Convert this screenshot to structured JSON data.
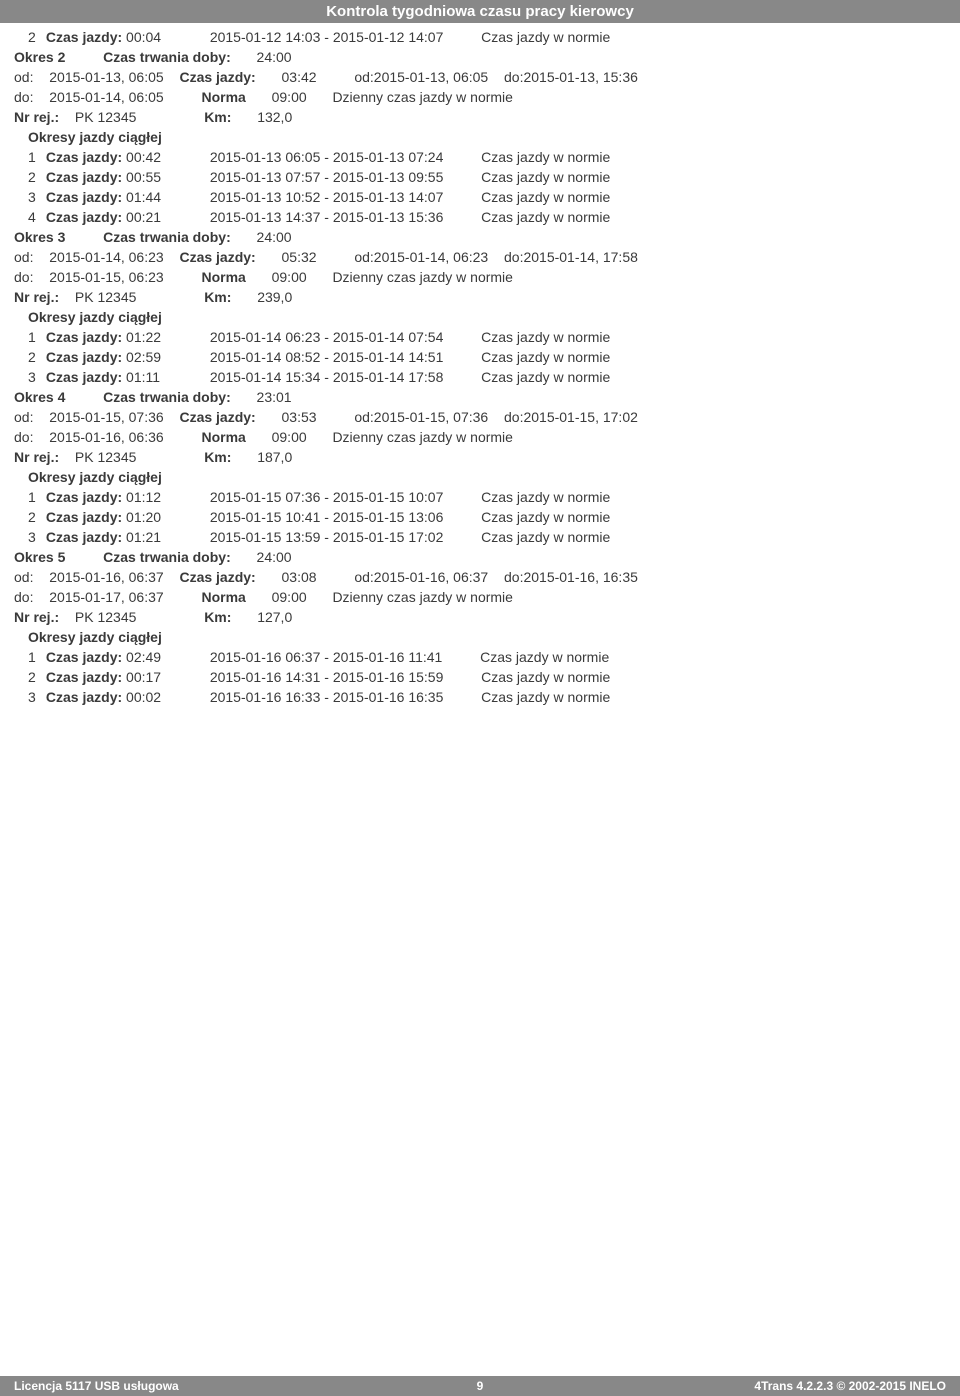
{
  "header": "Kontrola tygodniowa czasu pracy kierowcy",
  "labels": {
    "czas_jazdy": "Czas jazdy:",
    "okres": "Okres",
    "czas_trwania_doby": "Czas trwania doby:",
    "od": "od:",
    "do": "do:",
    "od_lc": "od:",
    "do_lc": "do:",
    "norma": "Norma",
    "dzienny": "Dzienny czas jazdy w normie",
    "nr_rej": "Nr rej.:",
    "km": "Km:",
    "okresy": "Okresy jazdy ciągłej",
    "cjwn": "Czas jazdy w normie"
  },
  "reg": "PK 12345",
  "top_row": {
    "n": "2",
    "dur": "00:04",
    "from": "2015-01-12  14:03",
    "to": "2015-01-12  14:07"
  },
  "periods": [
    {
      "n": "2",
      "doba": "24:00",
      "od_dt": "2015-01-13, 06:05",
      "cj": "03:42",
      "od2": "2015-01-13, 06:05",
      "do2": "2015-01-13, 15:36",
      "do_dt": "2015-01-14, 06:05",
      "norma": "09:00",
      "km": "132,0",
      "rows": [
        {
          "n": "1",
          "dur": "00:42",
          "from": "2015-01-13  06:05",
          "to": "2015-01-13  07:24"
        },
        {
          "n": "2",
          "dur": "00:55",
          "from": "2015-01-13  07:57",
          "to": "2015-01-13  09:55"
        },
        {
          "n": "3",
          "dur": "01:44",
          "from": "2015-01-13  10:52",
          "to": "2015-01-13  14:07"
        },
        {
          "n": "4",
          "dur": "00:21",
          "from": "2015-01-13  14:37",
          "to": "2015-01-13  15:36"
        }
      ]
    },
    {
      "n": "3",
      "doba": "24:00",
      "od_dt": "2015-01-14, 06:23",
      "cj": "05:32",
      "od2": "2015-01-14, 06:23",
      "do2": "2015-01-14, 17:58",
      "do_dt": "2015-01-15, 06:23",
      "norma": "09:00",
      "km": "239,0",
      "rows": [
        {
          "n": "1",
          "dur": "01:22",
          "from": "2015-01-14  06:23",
          "to": "2015-01-14  07:54"
        },
        {
          "n": "2",
          "dur": "02:59",
          "from": "2015-01-14  08:52",
          "to": "2015-01-14  14:51"
        },
        {
          "n": "3",
          "dur": "01:11",
          "from": "2015-01-14  15:34",
          "to": "2015-01-14  17:58"
        }
      ]
    },
    {
      "n": "4",
      "doba": "23:01",
      "od_dt": "2015-01-15, 07:36",
      "cj": "03:53",
      "od2": "2015-01-15, 07:36",
      "do2": "2015-01-15, 17:02",
      "do_dt": "2015-01-16, 06:36",
      "norma": "09:00",
      "km": "187,0",
      "rows": [
        {
          "n": "1",
          "dur": "01:12",
          "from": "2015-01-15  07:36",
          "to": "2015-01-15  10:07"
        },
        {
          "n": "2",
          "dur": "01:20",
          "from": "2015-01-15  10:41",
          "to": "2015-01-15  13:06"
        },
        {
          "n": "3",
          "dur": "01:21",
          "from": "2015-01-15  13:59",
          "to": "2015-01-15  17:02"
        }
      ]
    },
    {
      "n": "5",
      "doba": "24:00",
      "od_dt": "2015-01-16, 06:37",
      "cj": "03:08",
      "od2": "2015-01-16, 06:37",
      "do2": "2015-01-16, 16:35",
      "do_dt": "2015-01-17, 06:37",
      "norma": "09:00",
      "km": "127,0",
      "rows": [
        {
          "n": "1",
          "dur": "02:49",
          "from": "2015-01-16  06:37",
          "to": "2015-01-16  11:41"
        },
        {
          "n": "2",
          "dur": "00:17",
          "from": "2015-01-16  14:31",
          "to": "2015-01-16  15:59"
        },
        {
          "n": "3",
          "dur": "00:02",
          "from": "2015-01-16  16:33",
          "to": "2015-01-16  16:35"
        }
      ]
    }
  ],
  "footer": {
    "left": "Licencja 5117 USB usługowa",
    "page": "9",
    "right": "4Trans 4.2.2.3 © 2002-2015 INELO"
  }
}
